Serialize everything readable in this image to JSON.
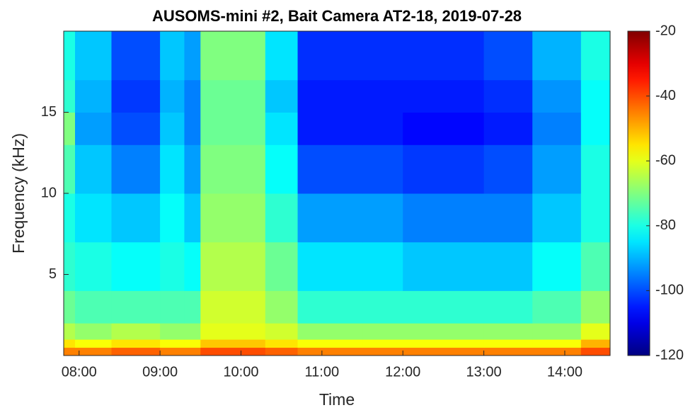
{
  "chart_data": {
    "type": "heatmap",
    "colormap": "jet",
    "title": "AUSOMS-mini #2, Bait Camera AT2-18, 2019-07-28",
    "xlabel": "Time",
    "ylabel": "Frequency (kHz)",
    "x_bins": [
      7.81,
      7.95,
      8.4,
      9.0,
      9.3,
      9.5,
      10.3,
      10.7,
      11.5,
      12.0,
      13.0,
      13.6,
      14.2,
      14.56
    ],
    "y_bins": [
      0,
      0.5,
      1,
      2,
      4,
      7,
      10,
      13,
      15,
      17,
      20
    ],
    "z": [
      [
        -45,
        -45,
        -42,
        -45,
        -45,
        -40,
        -42,
        -45,
        -45,
        -45,
        -45,
        -45,
        -40
      ],
      [
        -55,
        -58,
        -55,
        -58,
        -58,
        -52,
        -55,
        -58,
        -58,
        -58,
        -58,
        -58,
        -50
      ],
      [
        -65,
        -68,
        -65,
        -68,
        -68,
        -60,
        -62,
        -68,
        -68,
        -68,
        -68,
        -68,
        -60
      ],
      [
        -72,
        -75,
        -75,
        -75,
        -75,
        -62,
        -68,
        -78,
        -78,
        -78,
        -78,
        -75,
        -68
      ],
      [
        -78,
        -80,
        -82,
        -80,
        -82,
        -65,
        -72,
        -85,
        -85,
        -88,
        -88,
        -82,
        -75
      ],
      [
        -80,
        -85,
        -88,
        -82,
        -88,
        -68,
        -78,
        -92,
        -92,
        -95,
        -95,
        -88,
        -80
      ],
      [
        -75,
        -88,
        -95,
        -85,
        -92,
        -70,
        -82,
        -100,
        -100,
        -102,
        -100,
        -92,
        -80
      ],
      [
        -70,
        -92,
        -100,
        -88,
        -95,
        -72,
        -85,
        -105,
        -105,
        -107,
        -105,
        -95,
        -82
      ],
      [
        -78,
        -90,
        -102,
        -90,
        -95,
        -72,
        -88,
        -105,
        -105,
        -105,
        -103,
        -93,
        -82
      ],
      [
        -80,
        -88,
        -100,
        -88,
        -92,
        -70,
        -85,
        -103,
        -103,
        -103,
        -100,
        -90,
        -80
      ]
    ],
    "xlim": [
      7.81,
      14.56
    ],
    "ylim": [
      0,
      20
    ],
    "xticks": [
      {
        "value": 8,
        "label": "08:00"
      },
      {
        "value": 9,
        "label": "09:00"
      },
      {
        "value": 10,
        "label": "10:00"
      },
      {
        "value": 11,
        "label": "11:00"
      },
      {
        "value": 12,
        "label": "12:00"
      },
      {
        "value": 13,
        "label": "13:00"
      },
      {
        "value": 14,
        "label": "14:00"
      }
    ],
    "yticks": [
      5,
      10,
      15
    ],
    "zlim": [
      -120,
      -20
    ],
    "zticks": [
      -120,
      -100,
      -80,
      -60,
      -40,
      -20
    ]
  }
}
